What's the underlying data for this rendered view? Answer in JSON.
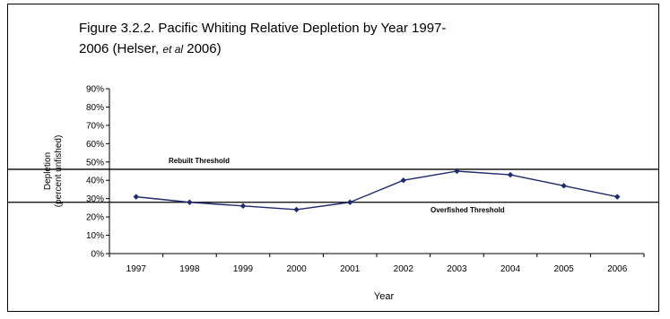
{
  "title": {
    "line1": "Figure 3.2.2.  Pacific Whiting Relative Depletion by Year 1997-",
    "line2_pre": "2006 (Helser, ",
    "line2_ital": "et al",
    "line2_post": "  2006)"
  },
  "chart_data": {
    "type": "line",
    "xlabel": "Year",
    "ylabel_line1": "Depletion",
    "ylabel_line2": "(percent unfished)",
    "ylim": [
      0,
      90
    ],
    "y_ticks": [
      0,
      10,
      20,
      30,
      40,
      50,
      60,
      70,
      80,
      90
    ],
    "y_tick_labels": [
      "0%",
      "10%",
      "20%",
      "30%",
      "40%",
      "50%",
      "60%",
      "70%",
      "80%",
      "90%"
    ],
    "categories": [
      "1997",
      "1998",
      "1999",
      "2000",
      "2001",
      "2002",
      "2003",
      "2004",
      "2005",
      "2006"
    ],
    "series": [
      {
        "values": [
          31,
          28,
          26,
          24,
          28,
          40,
          45,
          43,
          37,
          31
        ]
      }
    ],
    "thresholds": [
      {
        "label": "Rebuilt Threshold",
        "value": 46
      },
      {
        "label": "Overfished Threshold",
        "value": 28
      }
    ],
    "grid": false,
    "line_color": "#1f2a6b"
  }
}
